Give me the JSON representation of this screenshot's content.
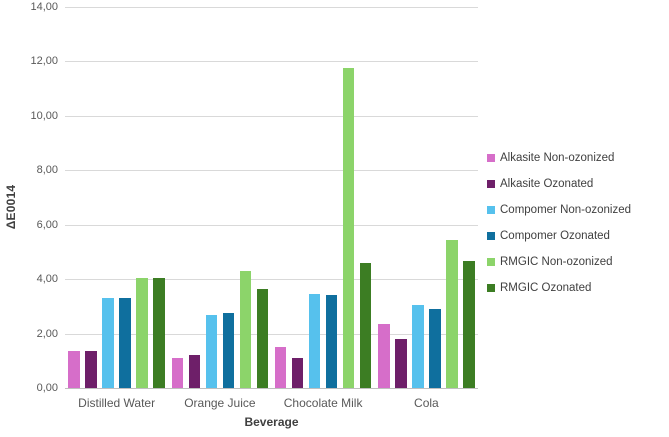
{
  "chart_data": {
    "type": "bar",
    "title": "",
    "xlabel": "Beverage",
    "ylabel": "ΔE0014",
    "ylim": [
      0,
      14
    ],
    "ytick_step": 2,
    "ytick_labels": [
      "0,00",
      "2,00",
      "4,00",
      "6,00",
      "8,00",
      "10,00",
      "12,00",
      "14,00"
    ],
    "decimal_style": "comma",
    "grid": true,
    "legend_position": "right",
    "categories": [
      "Distilled Water",
      "Orange Juice",
      "Chocolate Milk",
      "Cola"
    ],
    "series": [
      {
        "name": "Alkasite Non-ozonized",
        "color": "#d66ec9",
        "values": [
          1.35,
          1.1,
          1.5,
          2.35
        ]
      },
      {
        "name": "Alkasite Ozonated",
        "color": "#6e1f69",
        "values": [
          1.35,
          1.2,
          1.1,
          1.8
        ]
      },
      {
        "name": "Compomer Non-ozonized",
        "color": "#56c1ed",
        "values": [
          3.3,
          2.7,
          3.45,
          3.05
        ]
      },
      {
        "name": "Compomer Ozonated",
        "color": "#0f6f9e",
        "values": [
          3.3,
          2.75,
          3.4,
          2.9
        ]
      },
      {
        "name": "RMGIC Non-ozonized",
        "color": "#8cd46a",
        "values": [
          4.05,
          4.3,
          11.75,
          5.45
        ]
      },
      {
        "name": "RMGIC Ozonated",
        "color": "#3c7d23",
        "values": [
          4.05,
          3.65,
          4.6,
          4.65
        ]
      }
    ]
  },
  "colors": {
    "gridline": "#d9d9d9",
    "axis_line": "#bfbfbf",
    "tick_text": "#595959",
    "axis_title_text": "#404040",
    "background": "#ffffff"
  }
}
